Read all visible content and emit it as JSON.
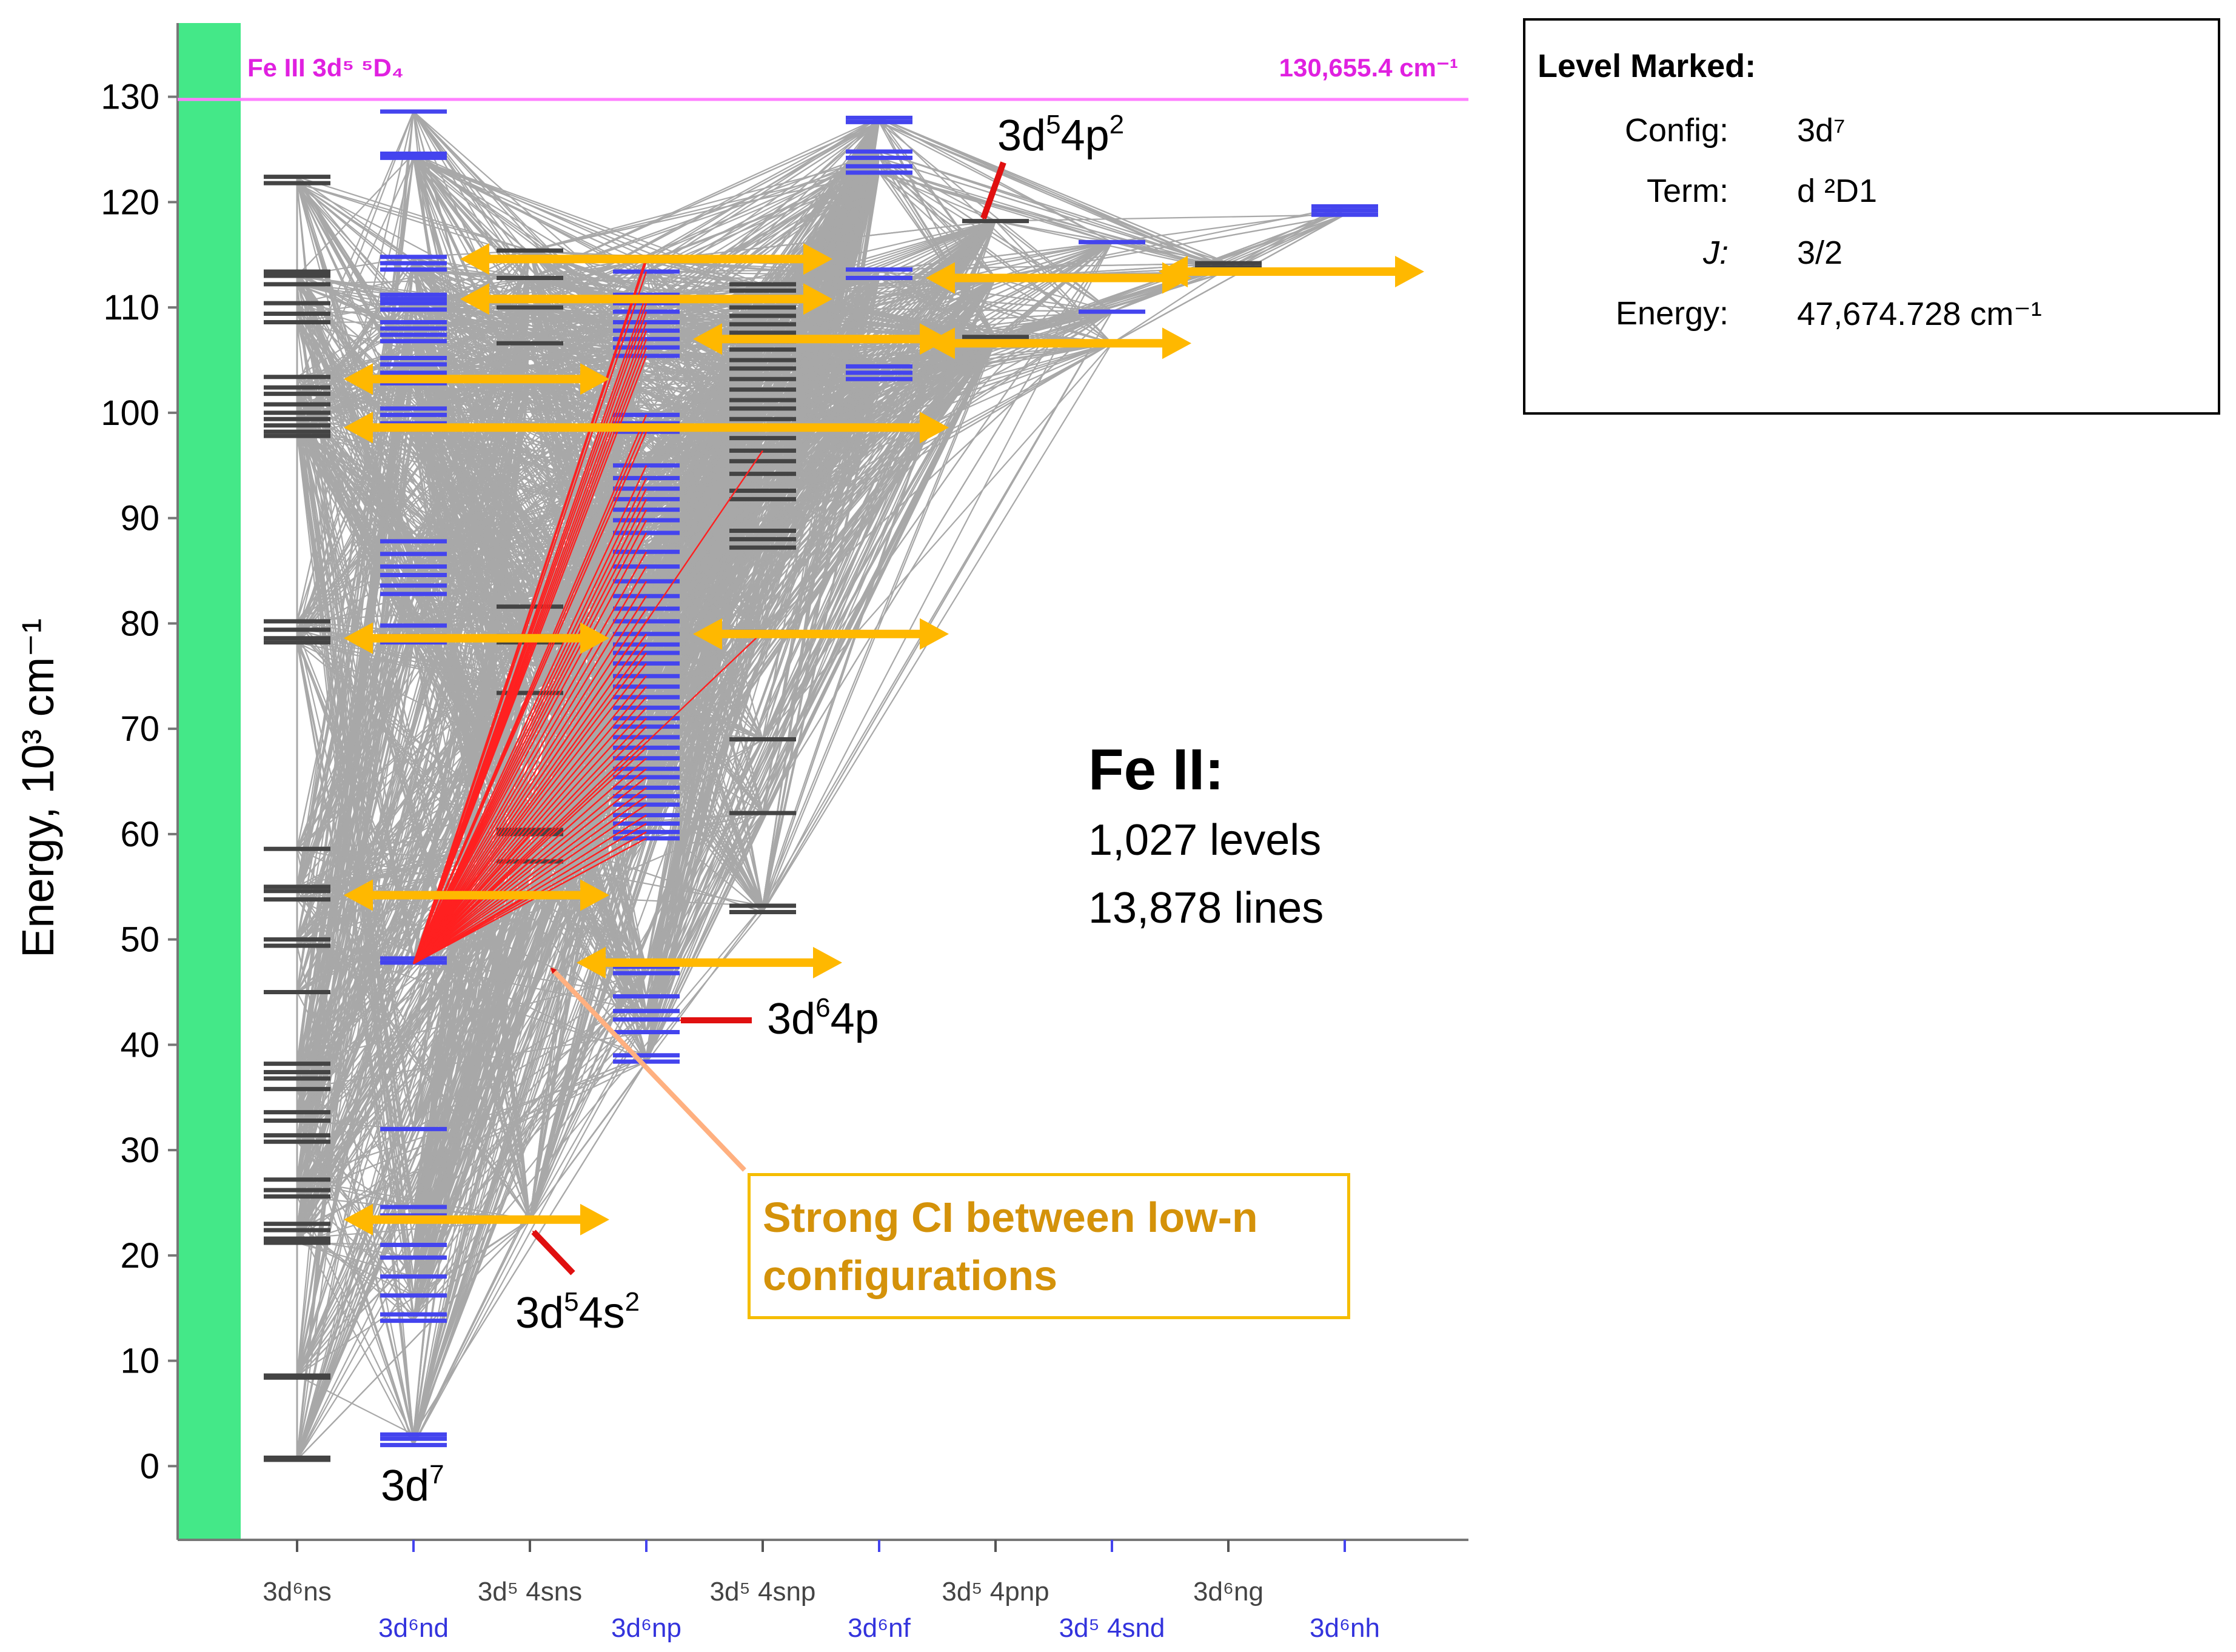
{
  "chart_data": {
    "type": "grotrian-diagram",
    "ion": "Fe II",
    "ylabel": "Energy, 10³ cm⁻¹",
    "ylim": [
      -7,
      137
    ],
    "yticks": [
      "0",
      "10",
      "20",
      "30",
      "40",
      "50",
      "60",
      "70",
      "80",
      "90",
      "100",
      "110",
      "120",
      "130"
    ],
    "ionization_limit": {
      "label": "Fe III 3d⁵ ⁵D₄",
      "value_label": "130,655.4 cm⁻¹",
      "energy": 130.655
    },
    "columns": [
      {
        "label": "3d⁶ns",
        "color": "#444444",
        "levels": [
          0.6,
          0.8,
          8.4,
          8.6,
          21.2,
          21.6,
          22.4,
          23.0,
          25.6,
          26.2,
          27.2,
          30.8,
          31.4,
          32.8,
          33.6,
          35.8,
          36.8,
          37.4,
          38.2,
          45.0,
          49.4,
          50.0,
          53.8,
          54.6,
          55.0,
          58.6,
          78.2,
          78.6,
          79.4,
          80.2,
          97.8,
          98.2,
          98.8,
          99.4,
          100.0,
          100.8,
          101.8,
          102.4,
          103.4,
          108.6,
          109.4,
          110.4,
          112.2,
          113.0,
          113.4,
          121.8,
          122.4
        ]
      },
      {
        "label": "3d⁶nd",
        "color": "#4444ee",
        "levels": [
          2.0,
          2.6,
          3.0,
          13.8,
          14.4,
          16.2,
          18.0,
          19.8,
          21.0,
          23.4,
          23.8,
          24.6,
          32.0,
          47.8,
          48.2,
          78.2,
          78.8,
          79.8,
          82.8,
          83.6,
          84.6,
          85.4,
          86.6,
          87.8,
          98.4,
          99.0,
          99.8,
          100.4,
          102.8,
          103.4,
          103.8,
          104.6,
          105.2,
          106.8,
          107.4,
          108.0,
          108.6,
          109.8,
          110.4,
          110.8,
          111.2,
          113.6,
          114.2,
          114.8,
          124.2,
          124.6,
          128.6
        ]
      },
      {
        "label": "3d⁵ 4sns",
        "color": "#444444",
        "levels": [
          23.4,
          54.2,
          57.4,
          60.0,
          60.4,
          73.4,
          78.2,
          78.8,
          81.6,
          103.2,
          106.6,
          110.0,
          112.8,
          115.4
        ]
      },
      {
        "label": "3d⁶np",
        "color": "#4444ee",
        "levels": [
          38.4,
          39.0,
          41.2,
          42.4,
          43.2,
          44.6,
          46.8,
          47.4,
          59.6,
          60.2,
          61.0,
          61.8,
          62.8,
          63.6,
          64.4,
          65.4,
          66.2,
          67.2,
          68.2,
          69.2,
          70.2,
          71.0,
          72.0,
          73.0,
          74.0,
          75.0,
          76.2,
          77.2,
          78.0,
          79.0,
          80.2,
          81.4,
          82.6,
          84.0,
          85.4,
          86.8,
          88.6,
          89.8,
          90.8,
          91.8,
          92.8,
          93.8,
          95.0,
          98.2,
          99.0,
          99.8,
          105.4,
          106.2,
          107.0,
          107.8,
          108.6,
          109.6,
          110.4,
          111.2,
          113.4,
          114.4,
          114.8
        ]
      },
      {
        "label": "3d⁵ 4snp",
        "color": "#444444",
        "levels": [
          52.6,
          53.2,
          62.0,
          69.0,
          79.2,
          87.2,
          88.0,
          88.8,
          91.8,
          92.6,
          94.2,
          95.4,
          96.4,
          97.6,
          98.6,
          99.4,
          100.4,
          101.2,
          102.2,
          103.2,
          104.2,
          105.0,
          106.0,
          106.8,
          107.6,
          108.4,
          109.2,
          110.0,
          110.8,
          111.6,
          112.2
        ]
      },
      {
        "label": "3d⁶nf",
        "color": "#4444ee",
        "levels": [
          103.2,
          103.8,
          104.4,
          112.8,
          113.6,
          122.8,
          123.4,
          124.2,
          124.8,
          127.6,
          128.0
        ]
      },
      {
        "label": "3d⁵ 4pnp",
        "color": "#444444",
        "levels": [
          106.8,
          107.2,
          112.8,
          118.2
        ]
      },
      {
        "label": "3d⁵ 4snd",
        "color": "#4444ee",
        "levels": [
          106.6,
          109.6,
          116.2
        ]
      },
      {
        "label": "3d⁶ng",
        "color": "#444444",
        "levels": [
          113.4,
          113.8,
          114.2
        ]
      },
      {
        "label": "3d⁶nh",
        "color": "#4444ee",
        "levels": [
          118.8,
          119.2,
          119.6
        ]
      }
    ],
    "ci_arrows": [
      {
        "y": 114.6,
        "from": 2,
        "to": 4
      },
      {
        "y": 110.8,
        "from": 2,
        "to": 4
      },
      {
        "y": 112.8,
        "from": 6,
        "to": 7.5
      },
      {
        "y": 113.4,
        "from": 8,
        "to": 9.5
      },
      {
        "y": 107.0,
        "from": 4,
        "to": 5
      },
      {
        "y": 106.6,
        "from": 6,
        "to": 7.5
      },
      {
        "y": 103.2,
        "from": 1,
        "to": 2.5
      },
      {
        "y": 98.6,
        "from": 1,
        "to": 5
      },
      {
        "y": 78.6,
        "from": 1,
        "to": 2.5
      },
      {
        "y": 79.0,
        "from": 4,
        "to": 5
      },
      {
        "y": 54.2,
        "from": 1,
        "to": 2.5
      },
      {
        "y": 47.8,
        "from": 3,
        "to": 4.5
      },
      {
        "y": 23.4,
        "from": 1,
        "to": 2.5
      }
    ],
    "highlighted_level": {
      "column": 1,
      "energy": 47.7
    },
    "annotations": [
      {
        "id": "3d54p2",
        "text": "3d⁵ 4p²"
      },
      {
        "id": "3d64p",
        "text": "3d⁶ 4p"
      },
      {
        "id": "3d54s2",
        "text": "3d⁵ 4s²"
      },
      {
        "id": "3d7",
        "text": "3d⁷"
      }
    ]
  },
  "info": {
    "title": "Level Marked:",
    "config_key": "Config:",
    "config_val": "3d⁷",
    "term_key": "Term:",
    "term_val": "d ²D1",
    "j_key": "J:",
    "j_val": "3/2",
    "energy_key": "Energy:",
    "energy_val": "47,674.728 cm⁻¹"
  },
  "ci_box": {
    "text": "Strong CI between low-n configurations"
  },
  "summary": {
    "title": "Fe II:",
    "levels": "1,027 levels",
    "lines": "13,878 lines"
  },
  "colors": {
    "band": "#44e888",
    "limit": "#ff80ff",
    "limit_text": "#e020e0",
    "arrow": "#ffb800",
    "annotation": "#e01010",
    "ci_text": "#d4920a"
  }
}
